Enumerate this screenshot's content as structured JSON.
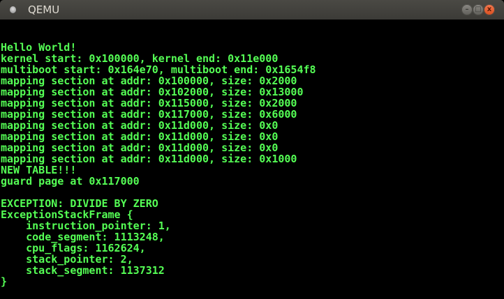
{
  "window": {
    "title": "QEMU",
    "controls": {
      "minimize": "–",
      "maximize": "□",
      "close": "x"
    }
  },
  "terminal": {
    "text_color": "#55ff55",
    "background": "#000000",
    "lines": [
      "Hello World!",
      "kernel start: 0x100000, kernel end: 0x11e000",
      "multiboot start: 0x164e70, multiboot end: 0x1654f8",
      "mapping section at addr: 0x100000, size: 0x2000",
      "mapping section at addr: 0x102000, size: 0x13000",
      "mapping section at addr: 0x115000, size: 0x2000",
      "mapping section at addr: 0x117000, size: 0x6000",
      "mapping section at addr: 0x11d000, size: 0x0",
      "mapping section at addr: 0x11d000, size: 0x0",
      "mapping section at addr: 0x11d000, size: 0x0",
      "mapping section at addr: 0x11d000, size: 0x1000",
      "NEW TABLE!!!",
      "guard page at 0x117000",
      "",
      "EXCEPTION: DIVIDE BY ZERO",
      "ExceptionStackFrame {",
      "    instruction_pointer: 1,",
      "    code_segment: 1113248,",
      "    cpu_flags: 1162624,",
      "    stack_pointer: 2,",
      "    stack_segment: 1137312",
      "}"
    ]
  }
}
